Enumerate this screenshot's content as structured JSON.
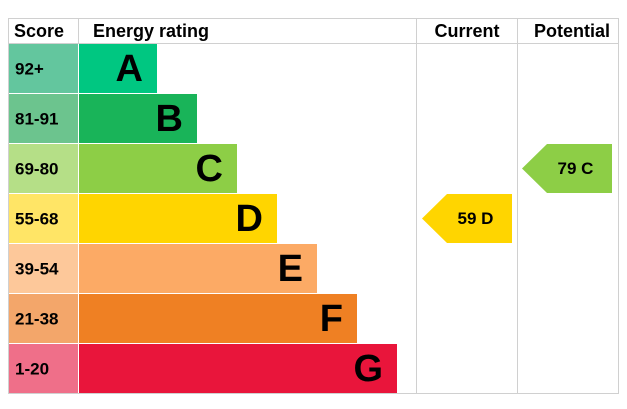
{
  "header": {
    "score": "Score",
    "rating": "Energy rating",
    "current": "Current",
    "potential": "Potential"
  },
  "bands": [
    {
      "score": "92+",
      "letter": "A",
      "color": "#00c781",
      "score_color": "#63c69e"
    },
    {
      "score": "81-91",
      "letter": "B",
      "color": "#19b459",
      "score_color": "#6cc48e"
    },
    {
      "score": "69-80",
      "letter": "C",
      "color": "#8dce46",
      "score_color": "#b5df87",
      "potential": "79 C"
    },
    {
      "score": "55-68",
      "letter": "D",
      "color": "#ffd500",
      "score_color": "#ffe566",
      "current": "59 D"
    },
    {
      "score": "39-54",
      "letter": "E",
      "color": "#fcaa65",
      "score_color": "#fdc89a"
    },
    {
      "score": "21-38",
      "letter": "F",
      "color": "#ef8023",
      "score_color": "#f3a66a"
    },
    {
      "score": "1-20",
      "letter": "G",
      "color": "#e9153b",
      "score_color": "#ef6f89"
    }
  ]
}
